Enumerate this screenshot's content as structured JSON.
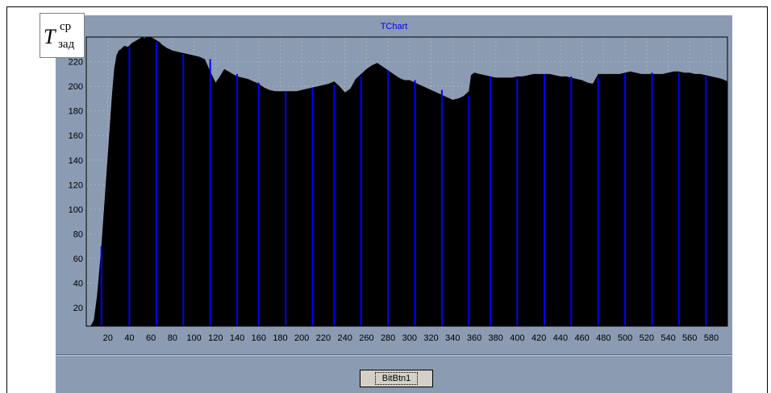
{
  "window": {
    "button_label": "BitBtn1"
  },
  "overlay": {
    "symbol": "T",
    "superscript": "ср",
    "subscript": "зад"
  },
  "chart_data": {
    "type": "area",
    "title": "TChart",
    "xlabel": "",
    "ylabel": "",
    "xlim": [
      0,
      595
    ],
    "ylim": [
      5,
      240
    ],
    "x_ticks": [
      20,
      40,
      60,
      80,
      100,
      120,
      140,
      160,
      180,
      200,
      220,
      240,
      260,
      280,
      300,
      320,
      340,
      360,
      380,
      400,
      420,
      440,
      460,
      480,
      500,
      520,
      540,
      560,
      580
    ],
    "y_ticks": [
      20,
      40,
      60,
      80,
      100,
      120,
      140,
      160,
      180,
      200,
      220
    ],
    "grid": true,
    "colors": {
      "fill": "#000000",
      "bars": "#0000ff",
      "plot_bg": "#8b9bb2",
      "grid": "#b0b0b0"
    },
    "series": [
      {
        "x": [
          0,
          4,
          7,
          10,
          12,
          14,
          16,
          18,
          20,
          22,
          24,
          26,
          28,
          30,
          32,
          34,
          36,
          38,
          40,
          42,
          44,
          46,
          48,
          50,
          52,
          54,
          56,
          58,
          60,
          62,
          64,
          66,
          68,
          70,
          75,
          80,
          85,
          90,
          95,
          100,
          105,
          110,
          115,
          120,
          124,
          128,
          132,
          136,
          140,
          145,
          150,
          155,
          160,
          165,
          170,
          175,
          180,
          185,
          190,
          195,
          200,
          205,
          210,
          215,
          220,
          225,
          230,
          235,
          240,
          245,
          250,
          255,
          260,
          265,
          270,
          275,
          280,
          285,
          290,
          295,
          300,
          305,
          310,
          315,
          320,
          325,
          330,
          335,
          340,
          345,
          350,
          355,
          357,
          360,
          365,
          370,
          375,
          380,
          385,
          390,
          395,
          400,
          405,
          410,
          415,
          420,
          425,
          430,
          435,
          440,
          445,
          450,
          455,
          460,
          465,
          470,
          475,
          480,
          485,
          490,
          495,
          500,
          505,
          510,
          515,
          520,
          525,
          530,
          535,
          540,
          545,
          550,
          555,
          560,
          565,
          570,
          575,
          580,
          585,
          590,
          595
        ],
        "values": [
          5,
          5,
          10,
          30,
          50,
          70,
          95,
          120,
          145,
          170,
          195,
          215,
          225,
          229,
          230,
          232,
          233,
          232,
          233,
          235,
          236,
          237,
          238,
          239,
          240,
          239,
          240,
          240,
          240,
          239,
          238,
          237,
          236,
          234,
          231,
          229,
          228,
          227,
          226,
          225,
          224,
          222,
          212,
          203,
          208,
          214,
          212,
          210,
          208,
          207,
          206,
          204,
          202,
          199,
          197,
          196,
          196,
          196,
          196,
          196,
          197,
          198,
          199,
          200,
          201,
          202,
          204,
          200,
          195,
          198,
          206,
          210,
          214,
          217,
          219,
          216,
          213,
          210,
          207,
          205,
          205,
          203,
          201,
          199,
          197,
          195,
          193,
          191,
          189,
          190,
          192,
          196,
          209,
          211,
          210,
          209,
          208,
          207,
          207,
          207,
          207,
          208,
          208,
          209,
          210,
          210,
          210,
          210,
          209,
          208,
          208,
          207,
          206,
          205,
          203,
          202,
          210,
          210,
          210,
          210,
          210,
          211,
          212,
          211,
          210,
          210,
          210,
          210,
          210,
          211,
          212,
          212,
          211,
          211,
          210,
          210,
          209,
          208,
          207,
          206,
          204
        ]
      }
    ],
    "bars": {
      "x": [
        14,
        40,
        65,
        90,
        115,
        140,
        160,
        185,
        210,
        230,
        255,
        280,
        305,
        330,
        355,
        375,
        400,
        425,
        450,
        475,
        500,
        525,
        550,
        575
      ],
      "values": [
        70,
        232,
        236,
        226,
        222,
        210,
        203,
        196,
        199,
        201,
        208,
        213,
        205,
        197,
        192,
        208,
        207,
        210,
        208,
        207,
        210,
        211,
        211,
        208
      ]
    }
  }
}
